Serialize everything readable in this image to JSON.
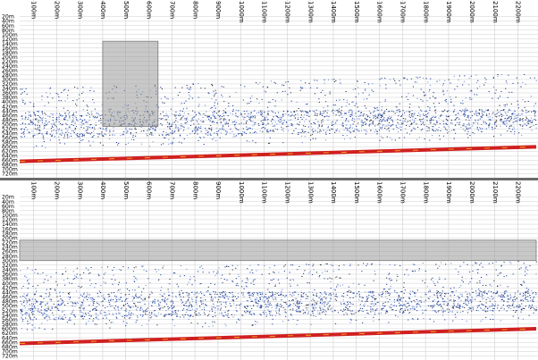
{
  "chart_data": [
    {
      "type": "heatmap",
      "title": "",
      "x_tick_labels": [
        "100m",
        "200m",
        "300m",
        "400m",
        "500m",
        "600m",
        "700m",
        "800m",
        "900m",
        "1000m",
        "1100m",
        "1200m",
        "1300m",
        "1400m",
        "1500m",
        "1600m",
        "1700m",
        "1800m",
        "1900m",
        "2000m",
        "2100m",
        "2200m"
      ],
      "x_tick_values": [
        100,
        200,
        300,
        400,
        500,
        600,
        700,
        800,
        900,
        1000,
        1100,
        1200,
        1300,
        1400,
        1500,
        1600,
        1700,
        1800,
        1900,
        2000,
        2100,
        2200
      ],
      "y_tick_labels": [
        "20m",
        "40m",
        "60m",
        "80m",
        "100m",
        "120m",
        "140m",
        "160m",
        "180m",
        "200m",
        "220m",
        "240m",
        "260m",
        "280m",
        "300m",
        "320m",
        "340m",
        "360m",
        "380m",
        "400m",
        "420m",
        "440m",
        "460m",
        "480m",
        "500m",
        "520m",
        "540m",
        "560m",
        "580m",
        "600m",
        "620m",
        "640m",
        "660m",
        "680m",
        "700m",
        "720m"
      ],
      "x_range": [
        40,
        2280
      ],
      "y_range": [
        10,
        730
      ],
      "y_reversed": true,
      "grid": true,
      "selection": {
        "x": [
          400,
          640
        ],
        "y": [
          130,
          510
        ]
      },
      "bottom_line": {
        "x": [
          40,
          2280
        ],
        "depth": [
          665,
          600
        ]
      },
      "scatter_layers": [
        {
          "name": "",
          "x": [
            40,
            2280
          ],
          "depth_top": [
            340,
            270
          ],
          "depth_bottom": [
            610,
            560
          ],
          "density": 0.35
        },
        {
          "name": "",
          "x": [
            40,
            2280
          ],
          "depth_top": [
            440,
            430
          ],
          "depth_bottom": [
            560,
            520
          ],
          "density": 0.55
        }
      ]
    },
    {
      "type": "heatmap",
      "title": "",
      "x_tick_labels": [
        "100m",
        "200m",
        "300m",
        "400m",
        "500m",
        "600m",
        "700m",
        "800m",
        "900m",
        "1000m",
        "1100m",
        "1200m",
        "1300m",
        "1400m",
        "1500m",
        "1600m",
        "1700m",
        "1800m",
        "1900m",
        "2000m",
        "2100m",
        "2200m"
      ],
      "x_tick_values": [
        100,
        200,
        300,
        400,
        500,
        600,
        700,
        800,
        900,
        1000,
        1100,
        1200,
        1300,
        1400,
        1500,
        1600,
        1700,
        1800,
        1900,
        2000,
        2100,
        2200
      ],
      "y_tick_labels": [
        "20m",
        "40m",
        "60m",
        "80m",
        "100m",
        "120m",
        "140m",
        "160m",
        "180m",
        "200m",
        "220m",
        "240m",
        "260m",
        "280m",
        "300m",
        "320m",
        "340m",
        "360m",
        "380m",
        "400m",
        "420m",
        "440m",
        "460m",
        "480m",
        "500m",
        "520m",
        "540m",
        "560m",
        "580m",
        "600m",
        "620m",
        "640m",
        "660m",
        "680m",
        "700m",
        "720m"
      ],
      "x_range": [
        40,
        2280
      ],
      "y_range": [
        10,
        730
      ],
      "y_reversed": true,
      "grid": true,
      "selection": {
        "x": [
          40,
          2280
        ],
        "y": [
          210,
          300
        ]
      },
      "bottom_line": {
        "x": [
          40,
          2280
        ],
        "depth": [
          665,
          600
        ]
      },
      "scatter_layers": [
        {
          "name": "",
          "x": [
            40,
            2280
          ],
          "depth_top": [
            330,
            300
          ],
          "depth_bottom": [
            610,
            560
          ],
          "density": 0.35
        },
        {
          "name": "",
          "x": [
            40,
            2280
          ],
          "depth_top": [
            440,
            430
          ],
          "depth_bottom": [
            560,
            520
          ],
          "density": 0.55
        }
      ]
    }
  ],
  "colors": {
    "background": "#ffffff",
    "grid": "#cfcfcf",
    "selection_fill": "#9a9a9a",
    "bottom": "#d02020",
    "echo_dark": "#1f3f9f",
    "echo_light": "#6f8fd8",
    "divider": "#6b6b6b"
  }
}
